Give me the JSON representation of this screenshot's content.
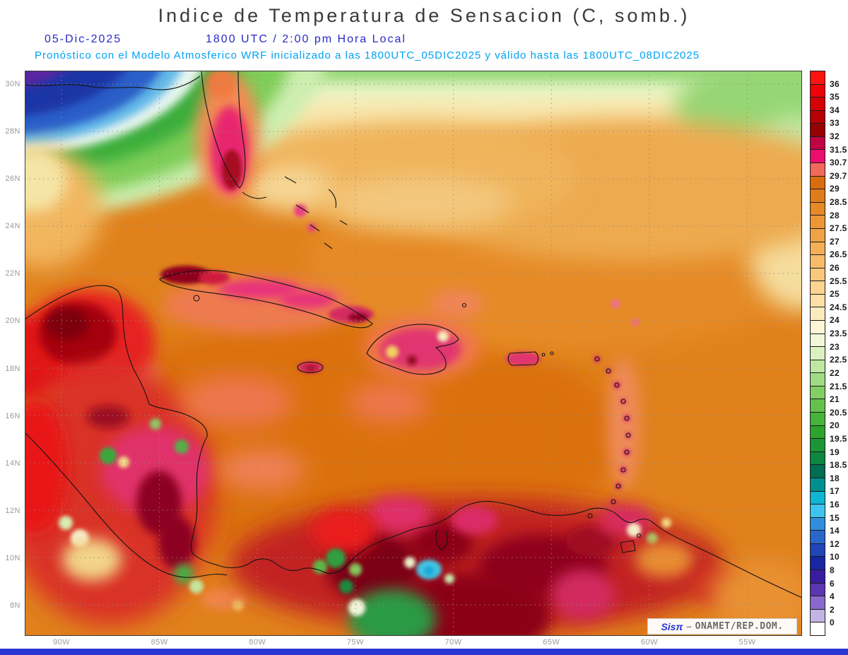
{
  "header": {
    "title": "Indice de Temperatura de Sensacion (C, somb.)",
    "date": "05-Dic-2025",
    "time_line": "1800 UTC / 2:00 pm Hora Local",
    "forecast_line": "Pronóstico con el Modelo Atmosferico WRF inicializado a las 1800UTC_05DIC2025 y válido hasta las  1800UTC_08DIC2025",
    "colors": {
      "title": "#3a3a3a",
      "date_time": "#2a2ac8",
      "forecast": "#00a2f2"
    }
  },
  "map": {
    "lat_ticks": [
      "30N",
      "28N",
      "26N",
      "24N",
      "22N",
      "20N",
      "18N",
      "16N",
      "14N",
      "12N",
      "10N",
      "8N"
    ],
    "lon_ticks": [
      "90W",
      "85W",
      "80W",
      "75W",
      "70W",
      "65W",
      "60W",
      "55W"
    ],
    "watermark": {
      "brand": "Sisπ",
      "separator": "–",
      "source": "ONAMET/REP.DOM."
    }
  },
  "colorbar": {
    "tick_labels": [
      "36",
      "35",
      "34",
      "33",
      "32",
      "31.5",
      "30.7",
      "29.7",
      "29",
      "28.5",
      "28",
      "27.5",
      "27",
      "26.5",
      "26",
      "25.5",
      "25",
      "24.5",
      "24",
      "23.5",
      "23",
      "22.5",
      "22",
      "21.5",
      "21",
      "20.5",
      "20",
      "19.5",
      "19",
      "18.5",
      "18",
      "17",
      "16",
      "15",
      "14",
      "12",
      "10",
      "8",
      "6",
      "4",
      "2",
      "0"
    ],
    "cell_colors": [
      "#fb1412",
      "#ee0309",
      "#d40207",
      "#b70104",
      "#960102",
      "#c00343",
      "#eb0e6e",
      "#f2685b",
      "#d96d0f",
      "#e07c1a",
      "#e68927",
      "#ec9636",
      "#f0a246",
      "#f4af57",
      "#f7bc6a",
      "#f9c87d",
      "#fbd491",
      "#fce0a7",
      "#fdebc0",
      "#fef5d7",
      "#f1f8da",
      "#dbf2c0",
      "#c0e7a2",
      "#a2db83",
      "#83cf65",
      "#64c14c",
      "#46b339",
      "#2da42e",
      "#1a9634",
      "#0c8740",
      "#006e54",
      "#008f8f",
      "#10b6d2",
      "#3ec3ee",
      "#2f8fdc",
      "#2a67cc",
      "#2144b8",
      "#1726a2",
      "#3a1d9e",
      "#5c35b2",
      "#8a68cc",
      "#c3b4e6",
      "#ffffff"
    ]
  },
  "chart_data": {
    "type": "heatmap",
    "title": "Indice de Temperatura de Sensacion (C, somb.)",
    "units": "C",
    "x_ticks": [
      "90W",
      "85W",
      "80W",
      "75W",
      "70W",
      "65W",
      "60W",
      "55W"
    ],
    "y_ticks": [
      "30N",
      "28N",
      "26N",
      "24N",
      "22N",
      "20N",
      "18N",
      "16N",
      "14N",
      "12N",
      "10N",
      "8N"
    ],
    "colorbar_boundaries": [
      36,
      35,
      34,
      33,
      32,
      31.5,
      30.7,
      29.7,
      29,
      28.5,
      28,
      27.5,
      27,
      26.5,
      26,
      25.5,
      25,
      24.5,
      24,
      23.5,
      23,
      22.5,
      22,
      21.5,
      21,
      20.5,
      20,
      19.5,
      19,
      18.5,
      18,
      17,
      16,
      15,
      14,
      12,
      10,
      8,
      6,
      4,
      2,
      0
    ],
    "legend_position": "right"
  }
}
